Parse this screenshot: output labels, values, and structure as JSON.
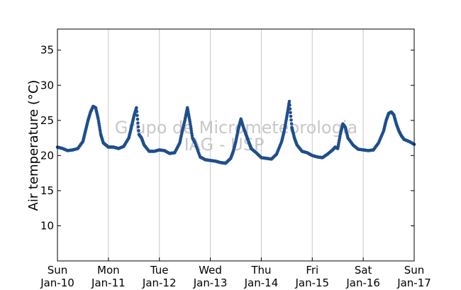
{
  "chart_data": {
    "type": "scatter",
    "title": "",
    "xlabel": "",
    "ylabel": "Air temperature (°C)",
    "watermark": [
      "Grupo de Micrometeorologia",
      "IAG - USP"
    ],
    "x_ticks": [
      {
        "day": 0,
        "line1": "Sun",
        "line2": "Jan-10"
      },
      {
        "day": 1,
        "line1": "Mon",
        "line2": "Jan-11"
      },
      {
        "day": 2,
        "line1": "Tue",
        "line2": "Jan-12"
      },
      {
        "day": 3,
        "line1": "Wed",
        "line2": "Jan-13"
      },
      {
        "day": 4,
        "line1": "Thu",
        "line2": "Jan-14"
      },
      {
        "day": 5,
        "line1": "Fri",
        "line2": "Jan-15"
      },
      {
        "day": 6,
        "line1": "Sat",
        "line2": "Jan-16"
      },
      {
        "day": 7,
        "line1": "Sun",
        "line2": "Jan-17"
      }
    ],
    "y_ticks": [
      10,
      15,
      20,
      25,
      30,
      35
    ],
    "xlim": [
      0,
      7
    ],
    "ylim": [
      5,
      38
    ],
    "grid": "vertical",
    "marker_color": "#1f4e8c",
    "series": [
      {
        "x": [
          0.0,
          0.1,
          0.2,
          0.3,
          0.4,
          0.5,
          0.55,
          0.6,
          0.65,
          0.7,
          0.75,
          0.8,
          0.85,
          0.9,
          0.95,
          1.0,
          1.1,
          1.2,
          1.3,
          1.4,
          1.45,
          1.5,
          1.55,
          1.6,
          1.65,
          1.7,
          1.8,
          1.9,
          2.0,
          2.1,
          2.2,
          2.3,
          2.4,
          2.45,
          2.5,
          2.55,
          2.6,
          2.65,
          2.7,
          2.8,
          2.9,
          3.0,
          3.1,
          3.2,
          3.3,
          3.4,
          3.45,
          3.5,
          3.55,
          3.6,
          3.65,
          3.7,
          3.75,
          3.8,
          3.9,
          4.0,
          4.1,
          4.2,
          4.3,
          4.4,
          4.45,
          4.5,
          4.55,
          4.6,
          4.65,
          4.7,
          4.8,
          4.9,
          5.0,
          5.1,
          5.2,
          5.3,
          5.4,
          5.45,
          5.5,
          5.55,
          5.6,
          5.65,
          5.7,
          5.8,
          5.9,
          6.0,
          6.1,
          6.2,
          6.3,
          6.4,
          6.45,
          6.5,
          6.55,
          6.6,
          6.65,
          6.7,
          6.75,
          6.8,
          6.9,
          7.0
        ],
        "y": [
          21.2,
          21.0,
          20.7,
          20.8,
          21.0,
          22.0,
          23.5,
          25.0,
          26.2,
          27.0,
          26.8,
          25.2,
          23.0,
          21.8,
          21.5,
          21.2,
          21.2,
          21.0,
          21.3,
          22.5,
          24.0,
          25.6,
          26.8,
          23.0,
          22.5,
          21.5,
          20.6,
          20.6,
          20.8,
          20.7,
          20.3,
          20.4,
          21.8,
          23.5,
          25.0,
          26.8,
          24.8,
          22.5,
          21.8,
          19.8,
          19.4,
          19.3,
          19.2,
          19.0,
          18.9,
          19.6,
          20.6,
          22.0,
          23.8,
          25.2,
          24.0,
          23.0,
          22.0,
          21.0,
          20.4,
          19.7,
          19.6,
          19.5,
          20.2,
          22.0,
          23.5,
          25.5,
          27.7,
          24.0,
          22.5,
          21.5,
          20.6,
          20.4,
          20.0,
          19.8,
          19.7,
          20.2,
          20.8,
          21.2,
          21.0,
          23.0,
          24.5,
          24.0,
          22.5,
          21.5,
          20.9,
          20.8,
          20.7,
          20.8,
          21.8,
          23.5,
          25.0,
          26.0,
          26.2,
          25.8,
          24.5,
          23.5,
          22.8,
          22.3,
          22.0,
          21.6
        ]
      }
    ]
  }
}
